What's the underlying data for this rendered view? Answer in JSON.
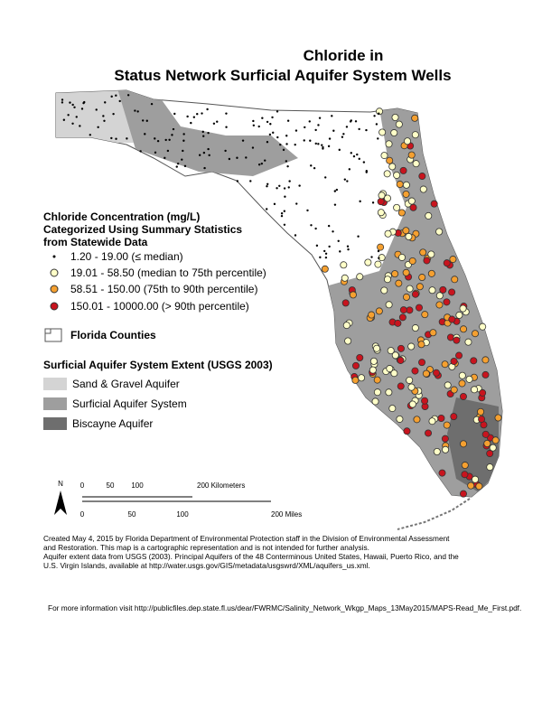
{
  "title": {
    "line1": "Chloride in",
    "line2": "Status Network Surficial Aquifer System Wells"
  },
  "legend": {
    "heading": [
      "Chloride Concentration (mg/L)",
      "Categorized Using Summary Statistics",
      "from Statewide Data"
    ],
    "classes": [
      "1.20 - 19.00 (≤ median)",
      "19.01 - 58.50 (median to 75th percentile)",
      "58.51 - 150.00 (75th to 90th percentile)",
      "150.01 - 10000.00 (> 90th percentile)"
    ],
    "counties": "Florida Counties",
    "extent_heading": "Surficial Aquifer System Extent (USGS 2003)",
    "extents": [
      "Sand & Gravel Aquifer",
      "Surficial Aquifer System",
      "Biscayne Aquifer"
    ]
  },
  "scale": {
    "north": "N",
    "km": [
      "0",
      "50",
      "100",
      "200 Kilometers"
    ],
    "mi": [
      "0",
      "50",
      "100",
      "200 Miles"
    ]
  },
  "credits": [
    "Created May 4, 2015 by Florida Department of Environmental Protection staff in the Division of Environmental Assessment",
    "and Restoration.  This map is a cartographic representation and is not intended for further analysis.",
    "Aquifer extent data from USGS (2003). Principal Aquifers of the 48 Conterminous United States, Hawaii, Puerto Rico, and the",
    "U.S. Virgin Islands, available at http://water.usgs.gov/GIS/metadata/usgswrd/XML/aquifers_us.xml."
  ],
  "footer": "For more information visit http://publicfiles.dep.state.fl.us/dear/FWRMC/Salinity_Network_Wkgp_Maps_13May2015/MAPS-Read_Me_First.pdf."
}
